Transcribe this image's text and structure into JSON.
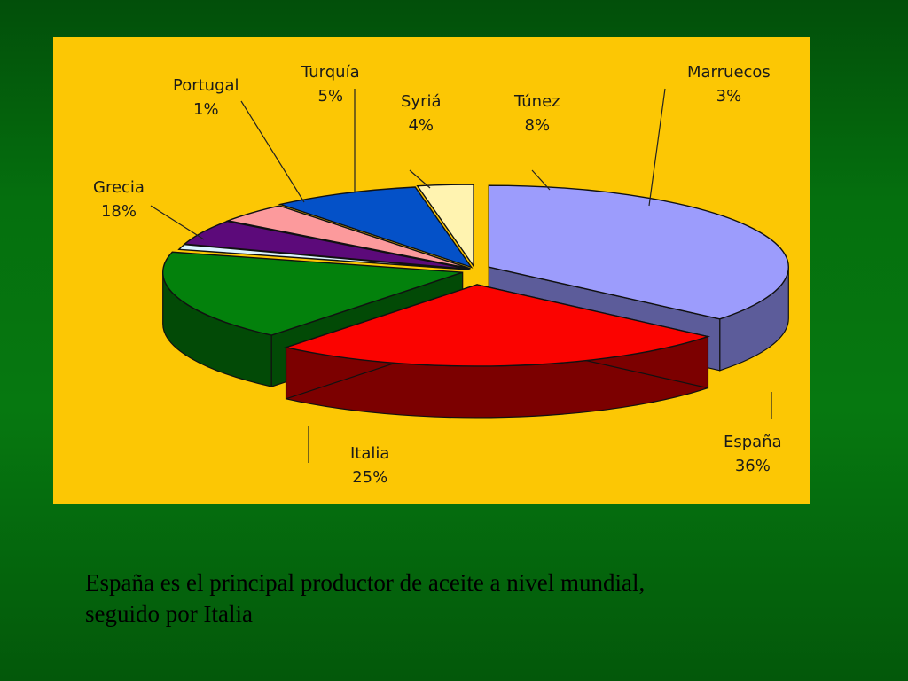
{
  "chart_data": {
    "type": "pie",
    "categories": [
      "España",
      "Italia",
      "Grecia",
      "Portugal",
      "Turquía",
      "Syriá",
      "Túnez",
      "Marruecos"
    ],
    "values": [
      36,
      25,
      18,
      1,
      5,
      4,
      8,
      3
    ],
    "labels": [
      "36%",
      "25%",
      "18%",
      "1%",
      "5%",
      "4%",
      "8%",
      "3%"
    ],
    "colors": [
      "#9c9cfc",
      "#fb0300",
      "#03810c",
      "#ddf5ff",
      "#5c0a7a",
      "#fc9a9c",
      "#0451c8",
      "#fff3b0"
    ],
    "side_colors": [
      "#5c5c9a",
      "#7c0000",
      "#024a06",
      "#9bb0ba",
      "#330444",
      "#b06a6c",
      "#022e72",
      "#b8a860"
    ],
    "style": "3d-exploded",
    "legend": "none"
  },
  "caption": {
    "line1": "España es el principal productor de aceite a nivel mundial,",
    "line2": "seguido por Italia"
  },
  "colors": {
    "panel_background": "#fcc704",
    "slide_background": "#067810",
    "caption_text": "#000000"
  }
}
